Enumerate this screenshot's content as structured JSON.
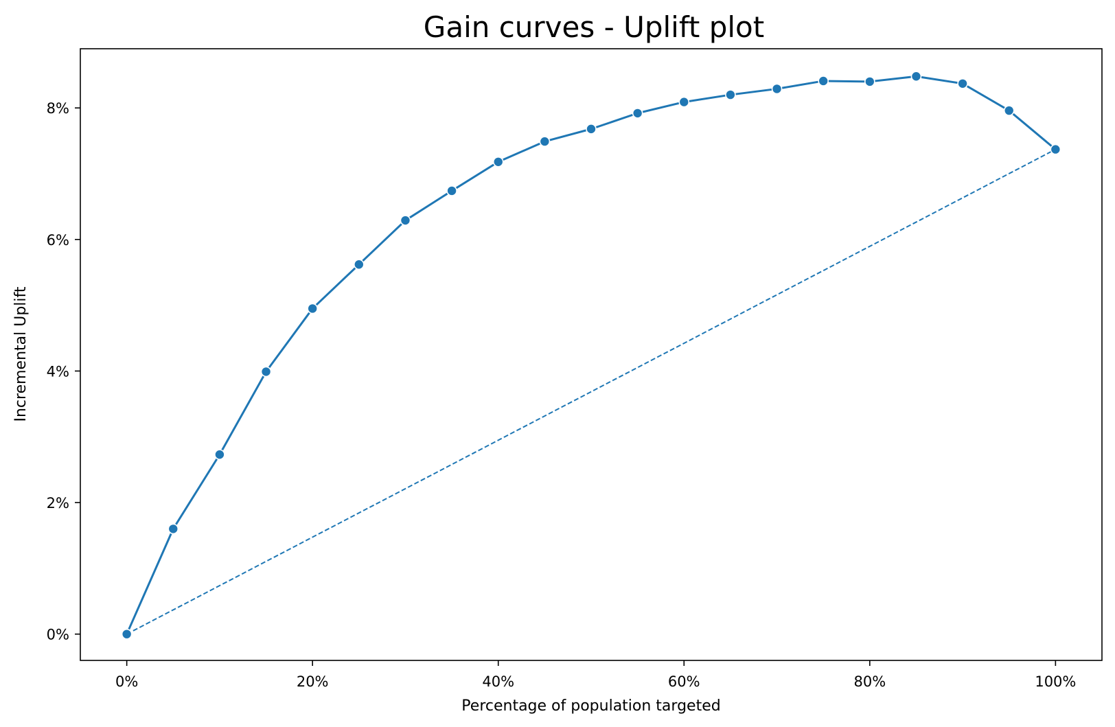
{
  "chart_data": {
    "type": "line",
    "title": "Gain curves - Uplift plot",
    "xlabel": "Percentage of population targeted",
    "ylabel": "Incremental Uplift",
    "xlim": [
      -5,
      105
    ],
    "ylim": [
      -0.4,
      8.9
    ],
    "x_ticks": [
      0,
      20,
      40,
      60,
      80,
      100
    ],
    "x_tick_labels": [
      "0%",
      "20%",
      "40%",
      "60%",
      "80%",
      "100%"
    ],
    "y_ticks": [
      0,
      2,
      4,
      6,
      8
    ],
    "y_tick_labels": [
      "0%",
      "2%",
      "4%",
      "6%",
      "8%"
    ],
    "grid": false,
    "colors": {
      "line": "#1f77b4"
    },
    "series": [
      {
        "style": "solid-with-markers",
        "x": [
          0,
          5,
          10,
          15,
          20,
          25,
          30,
          35,
          40,
          45,
          50,
          55,
          60,
          65,
          70,
          75,
          80,
          85,
          90,
          95,
          100
        ],
        "values": [
          0.0,
          1.6,
          2.73,
          3.99,
          4.95,
          5.62,
          6.29,
          6.74,
          7.18,
          7.49,
          7.68,
          7.92,
          8.09,
          8.2,
          8.29,
          8.41,
          8.4,
          8.48,
          8.37,
          7.96,
          7.37
        ]
      },
      {
        "style": "dashed",
        "x": [
          0,
          100
        ],
        "values": [
          0.0,
          7.37
        ]
      }
    ]
  }
}
